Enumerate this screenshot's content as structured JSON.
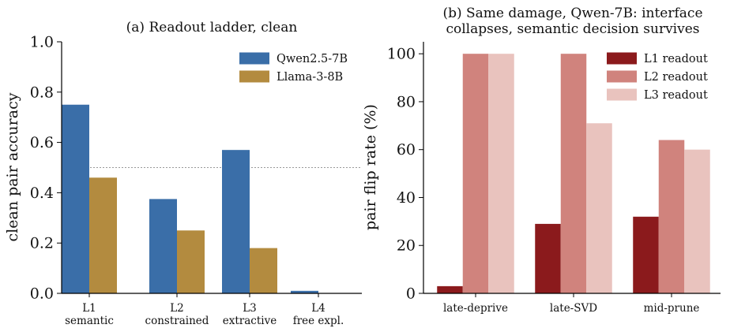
{
  "chart_data": [
    {
      "type": "bar",
      "title": "(a) Readout ladder, clean",
      "ylabel": "clean pair accuracy",
      "xlabel": "",
      "ylim": [
        0,
        1.0
      ],
      "yticks": [
        "0.0",
        "0.2",
        "0.4",
        "0.6",
        "0.8",
        "1.0"
      ],
      "categories": [
        [
          "L1",
          "semantic"
        ],
        [
          "L2",
          "constrained"
        ],
        [
          "L3",
          "extractive"
        ],
        [
          "L4",
          "free expl."
        ]
      ],
      "series": [
        {
          "name": "Qwen2.5-7B",
          "color": "#3a6ea8",
          "values": [
            0.75,
            0.375,
            0.57,
            0.01
          ]
        },
        {
          "name": "Llama-3-8B",
          "color": "#b38b3f",
          "values": [
            0.46,
            0.25,
            0.18,
            0.0
          ]
        }
      ],
      "reference_line": 0.5,
      "legend": "top-right",
      "grid": false
    },
    {
      "type": "bar",
      "title": [
        "(b) Same damage, Qwen-7B: interface",
        "collapses, semantic decision survives"
      ],
      "ylabel": "pair flip rate (%)",
      "xlabel": "",
      "ylim": [
        0,
        105
      ],
      "yticks": [
        "0",
        "20",
        "40",
        "60",
        "80",
        "100"
      ],
      "categories": [
        [
          "late-deprive"
        ],
        [
          "late-SVD"
        ],
        [
          "mid-prune"
        ]
      ],
      "series": [
        {
          "name": "L1 readout",
          "color": "#8b1a1c",
          "values": [
            3,
            29,
            32
          ]
        },
        {
          "name": "L2 readout",
          "color": "#d0837d",
          "values": [
            100,
            100,
            64
          ]
        },
        {
          "name": "L3 readout",
          "color": "#e9c3be",
          "values": [
            100,
            71,
            60
          ]
        }
      ],
      "legend": "top-right",
      "grid": false
    }
  ]
}
